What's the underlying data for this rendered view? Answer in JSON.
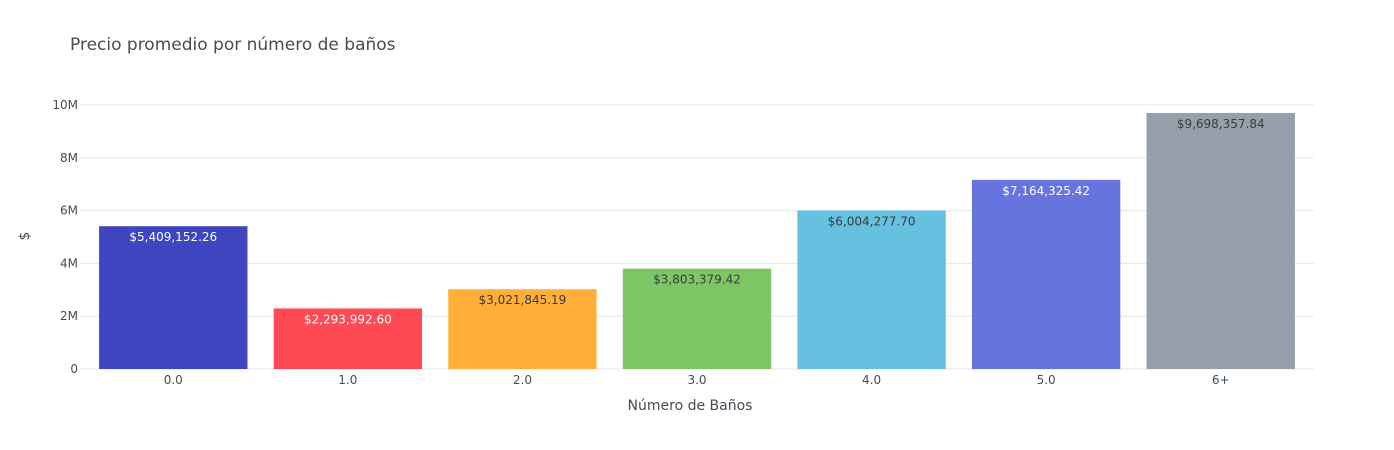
{
  "chart_data": {
    "type": "bar",
    "title": "Precio promedio por número de baños",
    "xlabel": "Número de Baños",
    "ylabel": "$",
    "categories": [
      "0.0",
      "1.0",
      "2.0",
      "3.0",
      "4.0",
      "5.0",
      "6+"
    ],
    "values": [
      5409152.26,
      2293992.6,
      3021845.19,
      3803379.42,
      6004277.7,
      7164325.42,
      9698357.84
    ],
    "value_labels": [
      "$5,409,152.26",
      "$2,293,992.60",
      "$3,021,845.19",
      "$3,803,379.42",
      "$6,004,277.70",
      "$7,164,325.42",
      "$9,698,357.84"
    ],
    "bar_colors": [
      "#3f45c0",
      "#ff4a55",
      "#ffae38",
      "#7dc665",
      "#66c0df",
      "#6774df",
      "#95a0ac"
    ],
    "label_colors": [
      "#ffffff",
      "#ffffff",
      "#3b3b3b",
      "#3b3b3b",
      "#3b3b3b",
      "#ffffff",
      "#3b3b3b"
    ],
    "ylim": [
      0,
      10000000
    ],
    "y_ticks": [
      0,
      2000000,
      4000000,
      6000000,
      8000000,
      10000000
    ],
    "y_tick_labels": [
      "0",
      "2M",
      "4M",
      "6M",
      "8M",
      "10M"
    ],
    "grid": true,
    "legend": "none"
  }
}
